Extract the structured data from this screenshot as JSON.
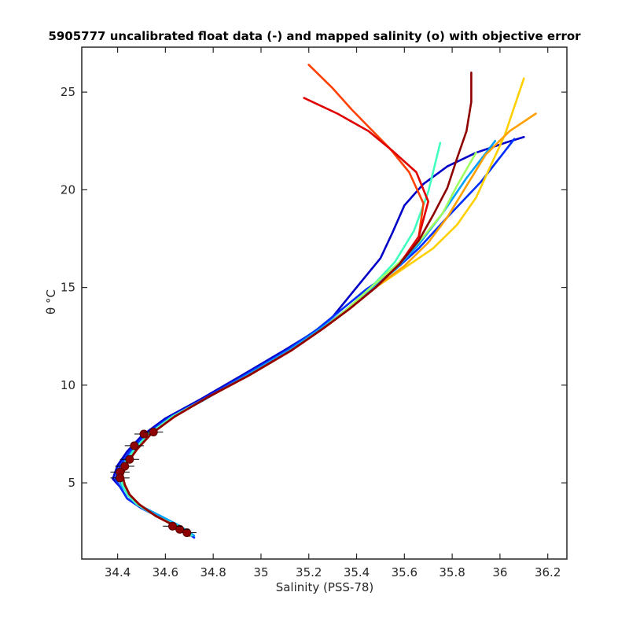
{
  "chart_data": {
    "type": "line",
    "title": "5905777 uncalibrated float data (-) and mapped salinity (o) with objective error",
    "xlabel": "Salinity (PSS-78)",
    "ylabel": "θ °C",
    "xlim": [
      34.25,
      36.28
    ],
    "ylim": [
      1.1,
      27.3
    ],
    "x_ticks": [
      "34.4",
      "34.6",
      "34.8",
      "35",
      "35.2",
      "35.4",
      "35.6",
      "35.8",
      "36",
      "36.2"
    ],
    "x_tick_values": [
      34.4,
      34.6,
      34.8,
      35.0,
      35.2,
      35.4,
      35.6,
      35.8,
      36.0,
      36.2
    ],
    "y_ticks": [
      "5",
      "10",
      "15",
      "20",
      "25"
    ],
    "y_tick_values": [
      5,
      10,
      15,
      20,
      25
    ],
    "grid": false,
    "legend": "none",
    "colormap": "jet (profile number: early = blue, late = dark red)",
    "series_colors": [
      "#00008f",
      "#0020ff",
      "#0080ff",
      "#00e0ff",
      "#40ffbf",
      "#a0ff60",
      "#ffe000",
      "#ffa000",
      "#ff4000",
      "#df0000",
      "#8f0000"
    ],
    "series": [
      {
        "color": "#0000c8",
        "x": [
          34.72,
          34.66,
          34.58,
          34.5,
          34.44,
          34.41,
          34.38,
          34.4,
          34.44,
          34.5,
          34.6,
          34.75,
          34.92,
          35.1,
          35.22,
          35.3,
          35.4,
          35.5,
          35.55,
          35.6,
          35.68,
          35.78,
          35.9,
          36.02,
          36.1
        ],
        "y": [
          2.2,
          2.7,
          3.2,
          3.7,
          4.2,
          4.8,
          5.2,
          5.9,
          6.6,
          7.4,
          8.3,
          9.3,
          10.5,
          11.8,
          12.7,
          13.5,
          15.0,
          16.5,
          17.8,
          19.2,
          20.3,
          21.2,
          21.9,
          22.4,
          22.7
        ]
      },
      {
        "color": "#0030ff",
        "x": [
          34.72,
          34.66,
          34.58,
          34.5,
          34.44,
          34.41,
          34.39,
          34.41,
          34.45,
          34.51,
          34.61,
          34.76,
          34.93,
          35.11,
          35.24,
          35.34,
          35.44,
          35.56,
          35.66,
          35.78,
          35.92,
          36.06
        ],
        "y": [
          2.2,
          2.7,
          3.2,
          3.7,
          4.2,
          4.8,
          5.2,
          5.9,
          6.6,
          7.4,
          8.3,
          9.3,
          10.5,
          11.8,
          12.9,
          13.9,
          14.9,
          15.9,
          17.0,
          18.6,
          20.4,
          22.6
        ]
      },
      {
        "color": "#00a0ff",
        "x": [
          34.72,
          34.66,
          34.58,
          34.5,
          34.45,
          34.42,
          34.4,
          34.42,
          34.46,
          34.52,
          34.62,
          34.77,
          34.94,
          35.12,
          35.25,
          35.35,
          35.45,
          35.56,
          35.66,
          35.76,
          35.86,
          35.98
        ],
        "y": [
          2.3,
          2.8,
          3.3,
          3.8,
          4.3,
          4.8,
          5.3,
          5.9,
          6.6,
          7.4,
          8.3,
          9.3,
          10.5,
          11.8,
          12.9,
          13.8,
          14.8,
          15.9,
          17.2,
          18.8,
          20.6,
          22.5
        ]
      },
      {
        "color": "#40ffbf",
        "x": [
          34.71,
          34.65,
          34.56,
          34.48,
          34.44,
          34.42,
          34.41,
          34.43,
          34.47,
          34.53,
          34.63,
          34.78,
          34.95,
          35.13,
          35.26,
          35.36,
          35.46,
          35.56,
          35.64,
          35.7,
          35.75
        ],
        "y": [
          2.3,
          2.8,
          3.3,
          3.9,
          4.4,
          4.9,
          5.4,
          6.0,
          6.7,
          7.5,
          8.4,
          9.4,
          10.5,
          11.8,
          12.9,
          13.9,
          15.0,
          16.3,
          17.9,
          19.9,
          22.4
        ]
      },
      {
        "color": "#a0ff60",
        "x": [
          34.7,
          34.64,
          34.56,
          34.49,
          34.45,
          34.43,
          34.42,
          34.44,
          34.48,
          34.54,
          34.64,
          34.78,
          34.95,
          35.13,
          35.26,
          35.36,
          35.46,
          35.58,
          35.68,
          35.76,
          35.82,
          35.9
        ],
        "y": [
          2.3,
          2.8,
          3.3,
          3.9,
          4.4,
          4.9,
          5.4,
          6.0,
          6.7,
          7.5,
          8.4,
          9.4,
          10.5,
          11.8,
          12.9,
          13.9,
          15.0,
          16.3,
          17.6,
          18.8,
          20.2,
          21.9
        ]
      },
      {
        "color": "#ffd000",
        "x": [
          34.7,
          34.64,
          34.56,
          34.49,
          34.45,
          34.43,
          34.42,
          34.44,
          34.48,
          34.54,
          34.64,
          34.78,
          34.95,
          35.13,
          35.26,
          35.37,
          35.48,
          35.6,
          35.72,
          35.82,
          35.9,
          35.96,
          36.02,
          36.1
        ],
        "y": [
          2.3,
          2.8,
          3.3,
          3.9,
          4.4,
          4.9,
          5.4,
          6.0,
          6.7,
          7.5,
          8.4,
          9.4,
          10.5,
          11.8,
          12.9,
          13.9,
          15.0,
          16.0,
          17.0,
          18.2,
          19.6,
          21.2,
          22.8,
          25.7
        ]
      },
      {
        "color": "#ffa000",
        "x": [
          34.7,
          34.64,
          34.56,
          34.49,
          34.45,
          34.43,
          34.42,
          34.44,
          34.48,
          34.54,
          34.64,
          34.78,
          34.95,
          35.13,
          35.26,
          35.37,
          35.48,
          35.6,
          35.7,
          35.78,
          35.86,
          35.94,
          36.04,
          36.15
        ],
        "y": [
          2.3,
          2.8,
          3.3,
          3.9,
          4.4,
          4.9,
          5.4,
          6.0,
          6.7,
          7.5,
          8.4,
          9.4,
          10.5,
          11.8,
          12.9,
          13.9,
          15.0,
          16.1,
          17.3,
          18.6,
          20.2,
          21.8,
          23.0,
          23.9
        ]
      },
      {
        "color": "#ff4000",
        "x": [
          34.7,
          34.64,
          34.56,
          34.49,
          34.45,
          34.43,
          34.42,
          34.44,
          34.48,
          34.54,
          34.64,
          34.78,
          34.95,
          35.13,
          35.26,
          35.37,
          35.48,
          35.58,
          35.66,
          35.68,
          35.62,
          35.54,
          35.46,
          35.38,
          35.3,
          35.2
        ],
        "y": [
          2.3,
          2.8,
          3.3,
          3.9,
          4.4,
          4.9,
          5.4,
          6.0,
          6.7,
          7.5,
          8.4,
          9.4,
          10.5,
          11.8,
          12.9,
          13.9,
          15.0,
          16.2,
          17.6,
          19.3,
          20.9,
          22.1,
          23.1,
          24.1,
          25.2,
          26.4
        ]
      },
      {
        "color": "#df0000",
        "x": [
          34.7,
          34.64,
          34.56,
          34.49,
          34.45,
          34.43,
          34.42,
          34.44,
          34.48,
          34.54,
          34.64,
          34.78,
          34.95,
          35.13,
          35.26,
          35.37,
          35.48,
          35.58,
          35.66,
          35.7,
          35.65,
          35.55,
          35.45,
          35.32,
          35.18
        ],
        "y": [
          2.3,
          2.8,
          3.3,
          3.9,
          4.4,
          4.9,
          5.4,
          6.0,
          6.7,
          7.5,
          8.4,
          9.4,
          10.5,
          11.8,
          12.9,
          13.9,
          15.0,
          16.2,
          17.6,
          19.4,
          20.9,
          22.0,
          23.0,
          23.9,
          24.7
        ]
      },
      {
        "color": "#8f0000",
        "x": [
          34.7,
          34.64,
          34.56,
          34.49,
          34.45,
          34.43,
          34.42,
          34.44,
          34.48,
          34.54,
          34.64,
          34.78,
          34.95,
          35.13,
          35.26,
          35.37,
          35.48,
          35.58,
          35.66,
          35.72,
          35.78,
          35.82,
          35.86,
          35.88,
          35.88
        ],
        "y": [
          2.3,
          2.8,
          3.3,
          3.9,
          4.4,
          4.9,
          5.4,
          6.0,
          6.7,
          7.5,
          8.4,
          9.4,
          10.5,
          11.8,
          12.9,
          13.9,
          15.0,
          16.2,
          17.4,
          18.7,
          20.1,
          21.6,
          23.0,
          24.5,
          26.0
        ]
      }
    ],
    "mapped_salinity": {
      "marker": "o",
      "color": "#8f0000",
      "points": [
        {
          "x": 34.69,
          "y": 2.45
        },
        {
          "x": 34.66,
          "y": 2.62
        },
        {
          "x": 34.63,
          "y": 2.78
        },
        {
          "x": 34.47,
          "y": 6.9
        },
        {
          "x": 34.45,
          "y": 6.2
        },
        {
          "x": 34.43,
          "y": 5.85
        },
        {
          "x": 34.41,
          "y": 5.55
        },
        {
          "x": 34.41,
          "y": 5.25
        },
        {
          "x": 34.51,
          "y": 7.5
        },
        {
          "x": 34.55,
          "y": 7.6
        }
      ],
      "objective_error": 0.04
    }
  }
}
